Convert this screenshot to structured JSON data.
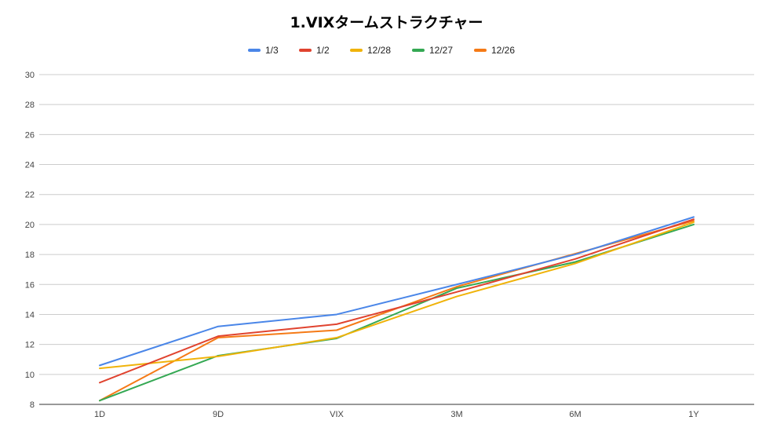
{
  "chart_data": {
    "type": "line",
    "title": "1.VIXタームストラクチャー",
    "xlabel": "",
    "ylabel": "",
    "categories": [
      "1D",
      "9D",
      "VIX",
      "3M",
      "6M",
      "1Y"
    ],
    "ylim": [
      8,
      30
    ],
    "yticks": [
      8,
      10,
      12,
      14,
      16,
      18,
      20,
      22,
      24,
      26,
      28,
      30
    ],
    "grid": true,
    "legend_position": "top",
    "series": [
      {
        "name": "1/3",
        "color": "#4a86e8",
        "values": [
          10.6,
          13.2,
          14.0,
          16.0,
          18.0,
          20.5
        ]
      },
      {
        "name": "1/2",
        "color": "#e0432f",
        "values": [
          9.45,
          12.55,
          13.35,
          15.5,
          17.7,
          20.35
        ]
      },
      {
        "name": "12/28",
        "color": "#f0b30a",
        "values": [
          10.4,
          11.2,
          12.45,
          15.2,
          17.4,
          20.15
        ]
      },
      {
        "name": "12/27",
        "color": "#34a853",
        "values": [
          8.25,
          11.25,
          12.4,
          15.75,
          17.5,
          20.0
        ]
      },
      {
        "name": "12/26",
        "color": "#f57a16",
        "values": [
          8.25,
          12.45,
          12.95,
          15.85,
          18.05,
          20.25
        ]
      }
    ]
  }
}
